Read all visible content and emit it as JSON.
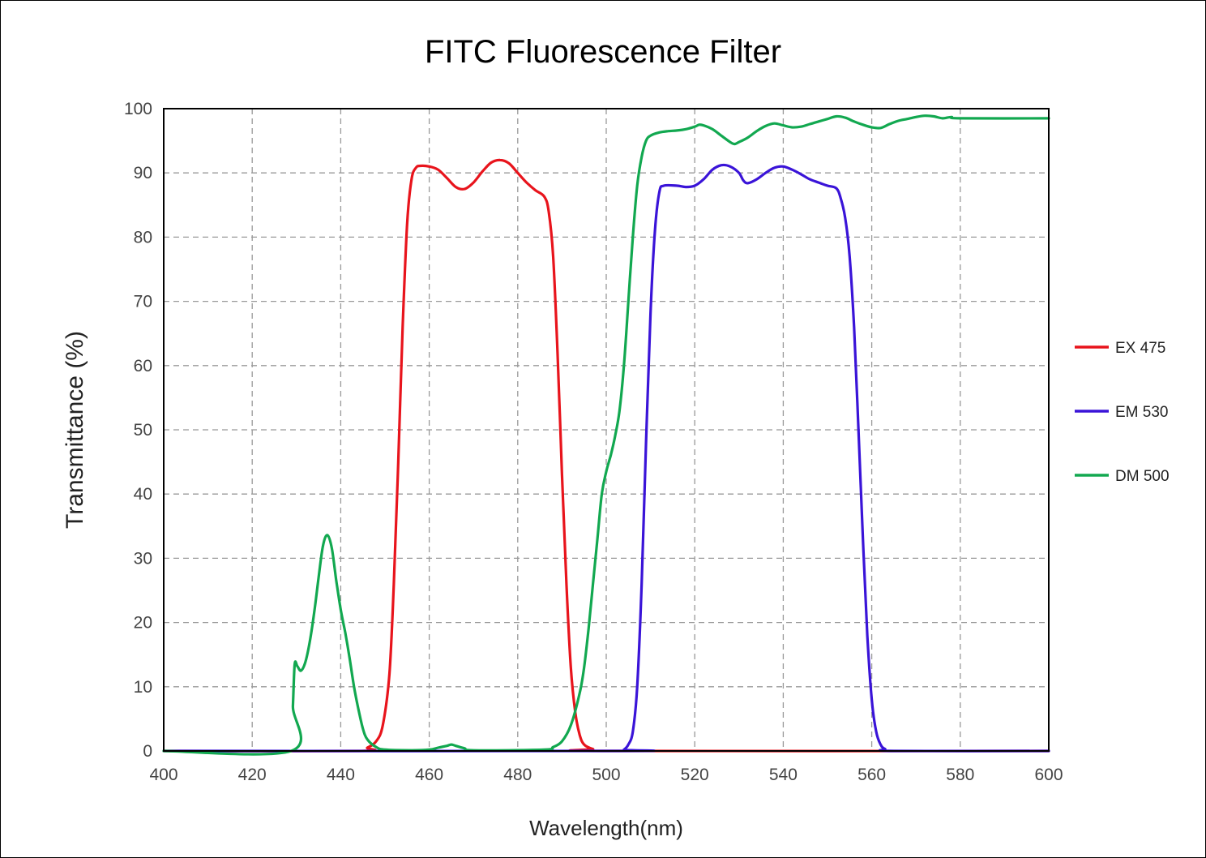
{
  "chart_data": {
    "type": "line",
    "title": "FITC Fluorescence Filter",
    "xlabel": "Wavelength(nm)",
    "ylabel": "Transmittance (%)",
    "xlim": [
      400,
      600
    ],
    "ylim": [
      0,
      100
    ],
    "xticks": [
      400,
      420,
      440,
      460,
      480,
      500,
      520,
      540,
      560,
      580,
      600
    ],
    "yticks": [
      0,
      10,
      20,
      30,
      40,
      50,
      60,
      70,
      80,
      90,
      100
    ],
    "grid": true,
    "legend_position": "right",
    "series": [
      {
        "name": "EX 475",
        "color": "#e8141c",
        "points": [
          [
            400,
            0
          ],
          [
            444,
            0
          ],
          [
            446,
            0.5
          ],
          [
            448,
            1.5
          ],
          [
            449.5,
            4
          ],
          [
            451,
            12
          ],
          [
            452,
            26
          ],
          [
            453,
            45
          ],
          [
            454,
            66
          ],
          [
            455,
            82
          ],
          [
            456,
            89
          ],
          [
            457,
            90.8
          ],
          [
            458,
            91.1
          ],
          [
            460,
            91
          ],
          [
            462,
            90.5
          ],
          [
            464,
            89.2
          ],
          [
            466,
            87.8
          ],
          [
            468,
            87.5
          ],
          [
            470,
            88.5
          ],
          [
            472,
            90.2
          ],
          [
            474,
            91.6
          ],
          [
            476,
            92
          ],
          [
            478,
            91.5
          ],
          [
            480,
            90
          ],
          [
            482,
            88.5
          ],
          [
            484,
            87.3
          ],
          [
            486,
            86.3
          ],
          [
            487,
            84
          ],
          [
            488,
            77
          ],
          [
            489,
            62
          ],
          [
            490,
            43
          ],
          [
            491,
            26
          ],
          [
            492,
            13
          ],
          [
            493,
            6
          ],
          [
            494,
            2.5
          ],
          [
            495,
            1
          ],
          [
            497,
            0.3
          ],
          [
            500,
            0
          ],
          [
            600,
            0
          ]
        ]
      },
      {
        "name": "EM 530",
        "color": "#3a14d8",
        "points": [
          [
            400,
            0
          ],
          [
            503,
            0
          ],
          [
            504,
            0.2
          ],
          [
            505,
            1
          ],
          [
            506,
            3
          ],
          [
            507,
            10
          ],
          [
            508,
            26
          ],
          [
            509,
            48
          ],
          [
            510,
            68
          ],
          [
            511,
            81
          ],
          [
            512,
            87
          ],
          [
            513,
            88
          ],
          [
            516,
            88
          ],
          [
            518,
            87.8
          ],
          [
            520,
            88
          ],
          [
            522,
            89
          ],
          [
            524,
            90.5
          ],
          [
            526,
            91.2
          ],
          [
            528,
            91
          ],
          [
            530,
            90
          ],
          [
            531,
            88.8
          ],
          [
            532,
            88.4
          ],
          [
            534,
            89
          ],
          [
            536,
            90
          ],
          [
            538,
            90.8
          ],
          [
            540,
            91
          ],
          [
            542,
            90.5
          ],
          [
            544,
            89.8
          ],
          [
            546,
            89
          ],
          [
            548,
            88.5
          ],
          [
            550,
            88
          ],
          [
            552,
            87.6
          ],
          [
            553,
            86
          ],
          [
            554,
            83
          ],
          [
            555,
            77
          ],
          [
            556,
            66
          ],
          [
            557,
            50
          ],
          [
            558,
            33
          ],
          [
            559,
            18
          ],
          [
            560,
            8
          ],
          [
            561,
            3
          ],
          [
            562,
            1
          ],
          [
            563,
            0.3
          ],
          [
            565,
            0
          ],
          [
            600,
            0
          ]
        ]
      },
      {
        "name": "DM 500",
        "color": "#12a850",
        "points": [
          [
            400,
            0
          ],
          [
            428.8,
            0
          ],
          [
            429.2,
            7
          ],
          [
            429.6,
            13.5
          ],
          [
            430.2,
            13.2
          ],
          [
            431,
            12.5
          ],
          [
            432,
            13.8
          ],
          [
            433,
            17
          ],
          [
            434,
            21.5
          ],
          [
            435,
            27
          ],
          [
            436,
            32
          ],
          [
            437,
            33.6
          ],
          [
            438,
            31.5
          ],
          [
            439,
            26.5
          ],
          [
            440,
            22
          ],
          [
            441,
            18.5
          ],
          [
            442,
            14.5
          ],
          [
            443,
            10
          ],
          [
            444,
            6.5
          ],
          [
            445,
            3.5
          ],
          [
            446,
            1.8
          ],
          [
            448,
            0.6
          ],
          [
            450,
            0.2
          ],
          [
            456,
            0.1
          ],
          [
            460,
            0.2
          ],
          [
            462,
            0.5
          ],
          [
            464,
            0.8
          ],
          [
            465,
            1
          ],
          [
            466,
            0.8
          ],
          [
            468,
            0.4
          ],
          [
            470,
            0.1
          ],
          [
            486,
            0.2
          ],
          [
            488,
            0.6
          ],
          [
            490,
            1.5
          ],
          [
            492,
            4
          ],
          [
            494,
            9
          ],
          [
            495,
            13
          ],
          [
            496,
            19
          ],
          [
            497,
            26
          ],
          [
            498,
            33
          ],
          [
            499,
            40
          ],
          [
            500,
            43.5
          ],
          [
            501,
            46
          ],
          [
            502,
            49
          ],
          [
            503,
            53
          ],
          [
            504,
            60
          ],
          [
            505,
            70
          ],
          [
            506,
            80
          ],
          [
            507,
            88
          ],
          [
            508,
            92.5
          ],
          [
            509,
            95
          ],
          [
            510,
            95.8
          ],
          [
            512,
            96.3
          ],
          [
            514,
            96.5
          ],
          [
            516,
            96.6
          ],
          [
            518,
            96.8
          ],
          [
            520,
            97.2
          ],
          [
            521,
            97.5
          ],
          [
            522,
            97.4
          ],
          [
            524,
            96.8
          ],
          [
            526,
            95.8
          ],
          [
            528,
            94.8
          ],
          [
            529,
            94.5
          ],
          [
            530,
            94.8
          ],
          [
            532,
            95.5
          ],
          [
            534,
            96.5
          ],
          [
            536,
            97.3
          ],
          [
            538,
            97.7
          ],
          [
            540,
            97.4
          ],
          [
            542,
            97.1
          ],
          [
            544,
            97.2
          ],
          [
            546,
            97.6
          ],
          [
            548,
            98
          ],
          [
            550,
            98.4
          ],
          [
            552,
            98.8
          ],
          [
            554,
            98.6
          ],
          [
            556,
            98
          ],
          [
            558,
            97.5
          ],
          [
            560,
            97.1
          ],
          [
            562,
            97
          ],
          [
            564,
            97.6
          ],
          [
            566,
            98.1
          ],
          [
            568,
            98.4
          ],
          [
            570,
            98.7
          ],
          [
            572,
            98.9
          ],
          [
            574,
            98.8
          ],
          [
            576,
            98.5
          ],
          [
            578,
            98.7
          ],
          [
            580,
            98.5
          ],
          [
            600,
            98.5
          ]
        ]
      }
    ]
  }
}
